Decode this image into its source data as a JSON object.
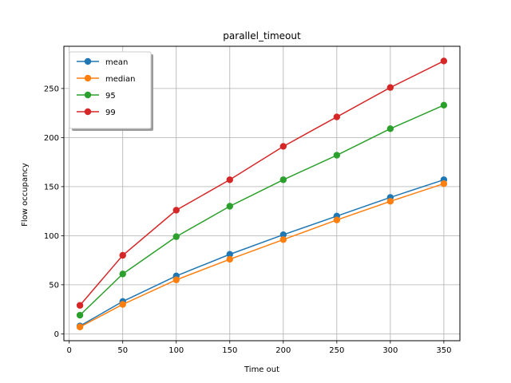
{
  "chart_data": {
    "type": "line",
    "title": "parallel_timeout",
    "xlabel": "Time out",
    "ylabel": "Flow occupancy",
    "x": [
      10,
      50,
      100,
      150,
      200,
      250,
      300,
      350
    ],
    "xticks": [
      0,
      50,
      100,
      150,
      200,
      250,
      300,
      350
    ],
    "yticks": [
      0,
      50,
      100,
      150,
      200,
      250
    ],
    "xlim": [
      -5,
      365
    ],
    "ylim": [
      -7,
      293
    ],
    "grid": true,
    "legend_position": "upper-left",
    "series": [
      {
        "name": "mean",
        "color": "#1f77b4",
        "values": [
          8,
          33,
          59,
          81,
          101,
          120,
          139,
          157
        ]
      },
      {
        "name": "median",
        "color": "#ff7f0e",
        "values": [
          7,
          30,
          55,
          76,
          96,
          116,
          135,
          153
        ]
      },
      {
        "name": "95",
        "color": "#2ca02c",
        "values": [
          19,
          61,
          99,
          130,
          157,
          182,
          209,
          233
        ]
      },
      {
        "name": "99",
        "color": "#d62728",
        "values": [
          29,
          80,
          126,
          157,
          191,
          221,
          251,
          278
        ]
      }
    ]
  }
}
